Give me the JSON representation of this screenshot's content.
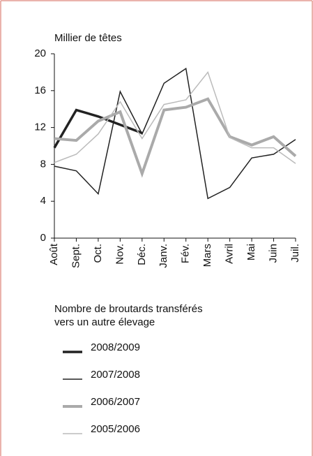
{
  "chart_data": {
    "type": "line",
    "y_label": "Millier de têtes",
    "legend_title": [
      "Nombre de broutards transférés",
      "vers un autre élevage"
    ],
    "categories": [
      "Août",
      "Sept.",
      "Oct.",
      "Nov.",
      "Déc.",
      "Janv.",
      "Fév.",
      "Mars",
      "Avril",
      "Mai",
      "Juin",
      "Juil."
    ],
    "series": [
      {
        "name": "2008/2009",
        "color": "#222222",
        "line_width": 3.5,
        "values": [
          9.8,
          13.9,
          13.2,
          12.3,
          11.4,
          null,
          null,
          null,
          null,
          null,
          null,
          null
        ]
      },
      {
        "name": "2007/2008",
        "color": "#222222",
        "line_width": 1.5,
        "values": [
          7.8,
          7.3,
          4.8,
          15.9,
          11.3,
          16.8,
          18.4,
          4.3,
          5.5,
          8.7,
          9.1,
          10.7
        ]
      },
      {
        "name": "2006/2007",
        "color": "#aaaaaa",
        "line_width": 4,
        "values": [
          10.8,
          10.6,
          12.7,
          13.7,
          7.0,
          13.9,
          14.2,
          15.1,
          11.0,
          10.1,
          11.0,
          8.9
        ]
      },
      {
        "name": "2005/2006",
        "color": "#bbbbbb",
        "line_width": 1.5,
        "values": [
          8.2,
          9.1,
          11.3,
          14.8,
          10.8,
          14.5,
          15.0,
          18.0,
          10.9,
          9.8,
          9.8,
          8.1
        ]
      }
    ],
    "ylim": [
      0,
      20
    ],
    "yticks": [
      0,
      4,
      8,
      12,
      16,
      20
    ],
    "grid": false
  }
}
